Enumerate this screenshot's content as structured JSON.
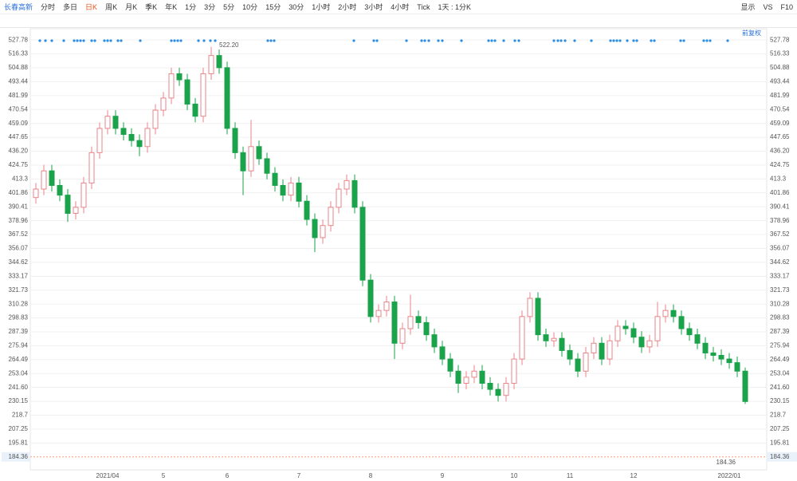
{
  "toolbar": {
    "stock": "长春高新",
    "periods": [
      "分时",
      "多日",
      "日K",
      "周K",
      "月K",
      "季K",
      "年K",
      "1分",
      "3分",
      "5分",
      "10分",
      "15分",
      "30分",
      "1小时",
      "2小时",
      "3小时",
      "4小时",
      "Tick",
      "1天 : 1分K"
    ],
    "right": [
      "显示",
      "VS",
      "F10"
    ]
  },
  "chart_data": {
    "type": "candlestick",
    "adjust_label": "前复权",
    "categories": [
      null,
      null,
      null,
      null,
      null,
      null,
      null,
      null,
      null,
      "2021/04",
      null,
      null,
      null,
      null,
      null,
      null,
      "5",
      null,
      null,
      null,
      null,
      null,
      null,
      null,
      "6",
      null,
      null,
      null,
      null,
      null,
      null,
      null,
      null,
      "7",
      null,
      null,
      null,
      null,
      null,
      null,
      null,
      null,
      "8",
      null,
      null,
      null,
      null,
      null,
      null,
      null,
      null,
      "9",
      null,
      null,
      null,
      null,
      null,
      null,
      null,
      null,
      "10",
      null,
      null,
      null,
      null,
      null,
      null,
      "11",
      null,
      null,
      null,
      null,
      null,
      null,
      null,
      "12",
      null,
      null,
      null,
      null,
      null,
      null,
      null,
      null,
      null,
      null,
      null,
      "2022/01",
      null,
      null
    ],
    "open": [
      398,
      405,
      420,
      408,
      400,
      385,
      390,
      410,
      435,
      455,
      465,
      455,
      450,
      445,
      440,
      455,
      470,
      480,
      500,
      495,
      475,
      465,
      500,
      515,
      505,
      455,
      435,
      420,
      440,
      430,
      418,
      408,
      400,
      410,
      395,
      380,
      365,
      375,
      390,
      405,
      412,
      390,
      330,
      300,
      305,
      312,
      278,
      290,
      300,
      295,
      285,
      275,
      265,
      255,
      245,
      250,
      255,
      245,
      240,
      235,
      245,
      265,
      300,
      315,
      285,
      280,
      282,
      272,
      265,
      255,
      270,
      278,
      265,
      280,
      292,
      290,
      283,
      275,
      280,
      300,
      305,
      300,
      290,
      285,
      278,
      270,
      268,
      265,
      262,
      255
    ],
    "high": [
      410,
      425,
      425,
      413,
      405,
      395,
      415,
      440,
      460,
      470,
      470,
      460,
      455,
      450,
      460,
      475,
      485,
      505,
      505,
      500,
      480,
      505,
      522.2,
      520,
      510,
      460,
      440,
      462,
      445,
      435,
      423,
      413,
      415,
      415,
      400,
      385,
      380,
      395,
      410,
      417,
      417,
      395,
      335,
      310,
      317,
      317,
      295,
      318,
      305,
      300,
      290,
      280,
      270,
      260,
      255,
      260,
      260,
      250,
      245,
      250,
      270,
      305,
      320,
      320,
      290,
      287,
      287,
      277,
      270,
      275,
      283,
      283,
      285,
      297,
      297,
      295,
      288,
      285,
      312,
      310,
      310,
      305,
      295,
      290,
      283,
      275,
      273,
      270,
      267,
      258
    ],
    "low": [
      393,
      400,
      403,
      395,
      378,
      380,
      385,
      405,
      430,
      450,
      450,
      445,
      440,
      432,
      435,
      450,
      465,
      475,
      490,
      470,
      460,
      460,
      495,
      500,
      450,
      430,
      400,
      415,
      425,
      413,
      403,
      395,
      395,
      390,
      375,
      353,
      360,
      370,
      385,
      400,
      385,
      325,
      295,
      295,
      300,
      265,
      273,
      285,
      290,
      280,
      270,
      260,
      250,
      237,
      240,
      245,
      240,
      235,
      230,
      230,
      240,
      260,
      295,
      280,
      275,
      275,
      267,
      260,
      250,
      250,
      265,
      260,
      260,
      275,
      285,
      278,
      270,
      270,
      275,
      295,
      295,
      285,
      280,
      273,
      265,
      263,
      260,
      257,
      250,
      228
    ],
    "close": [
      405,
      420,
      408,
      400,
      385,
      390,
      410,
      435,
      455,
      465,
      455,
      450,
      445,
      440,
      455,
      470,
      480,
      500,
      495,
      475,
      465,
      500,
      515,
      505,
      455,
      435,
      420,
      440,
      430,
      418,
      408,
      400,
      410,
      395,
      380,
      365,
      375,
      390,
      405,
      412,
      390,
      330,
      300,
      305,
      312,
      278,
      290,
      300,
      295,
      285,
      275,
      265,
      255,
      245,
      250,
      255,
      245,
      240,
      235,
      245,
      265,
      300,
      315,
      285,
      280,
      282,
      272,
      265,
      255,
      270,
      278,
      265,
      280,
      292,
      290,
      283,
      275,
      280,
      300,
      305,
      300,
      290,
      285,
      278,
      270,
      268,
      265,
      262,
      255,
      230
    ],
    "up_color": "#e8868a",
    "down_color": "#1aa34a",
    "max_annotation": {
      "value": 522.2,
      "label": "522.20"
    },
    "last_price": 184.36,
    "ylim": [
      173.7,
      537.1
    ],
    "yticks": [
      527.78,
      516.33,
      504.88,
      493.44,
      481.99,
      470.54,
      459.09,
      447.65,
      {
        "value": 436.2,
        "label": "436.20"
      },
      424.75,
      413.3,
      401.86,
      390.41,
      378.96,
      367.52,
      356.07,
      344.62,
      333.17,
      321.73,
      310.28,
      298.83,
      287.39,
      275.94,
      264.49,
      253.04,
      {
        "value": 241.6,
        "label": "241.60"
      },
      230.15,
      218.7,
      207.25,
      195.81
    ],
    "grid": true
  }
}
